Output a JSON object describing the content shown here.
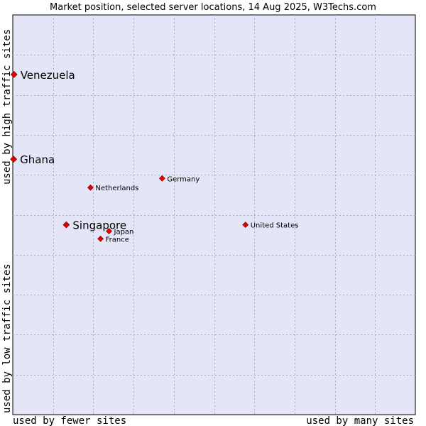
{
  "chart_data": {
    "type": "scatter",
    "title": "Market position, selected server locations, 14 Aug 2025, W3Techs.com",
    "xlabel_low": "used by fewer sites",
    "xlabel_high": "used by many sites",
    "ylabel_low": "used by low traffic sites",
    "ylabel_high": "used by high traffic sites",
    "xlim": [
      0,
      100
    ],
    "ylim": [
      0,
      100
    ],
    "grid": true,
    "points": [
      {
        "name": "Venezuela",
        "x": 0.3,
        "y": 85.1,
        "highlight": true
      },
      {
        "name": "Ghana",
        "x": 0.2,
        "y": 63.9,
        "highlight": true
      },
      {
        "name": "Germany",
        "x": 37.1,
        "y": 59.1,
        "highlight": false
      },
      {
        "name": "Netherlands",
        "x": 19.3,
        "y": 56.8,
        "highlight": false
      },
      {
        "name": "Singapore",
        "x": 13.3,
        "y": 47.5,
        "highlight": true
      },
      {
        "name": "United States",
        "x": 57.8,
        "y": 47.5,
        "highlight": false
      },
      {
        "name": "Japan",
        "x": 23.9,
        "y": 45.9,
        "highlight": false
      },
      {
        "name": "France",
        "x": 21.8,
        "y": 44.0,
        "highlight": false
      }
    ],
    "colors": {
      "plot_background": "#e4e6f8",
      "grid": "#a8aac8",
      "marker": "#e00000",
      "border": "#000000"
    }
  }
}
